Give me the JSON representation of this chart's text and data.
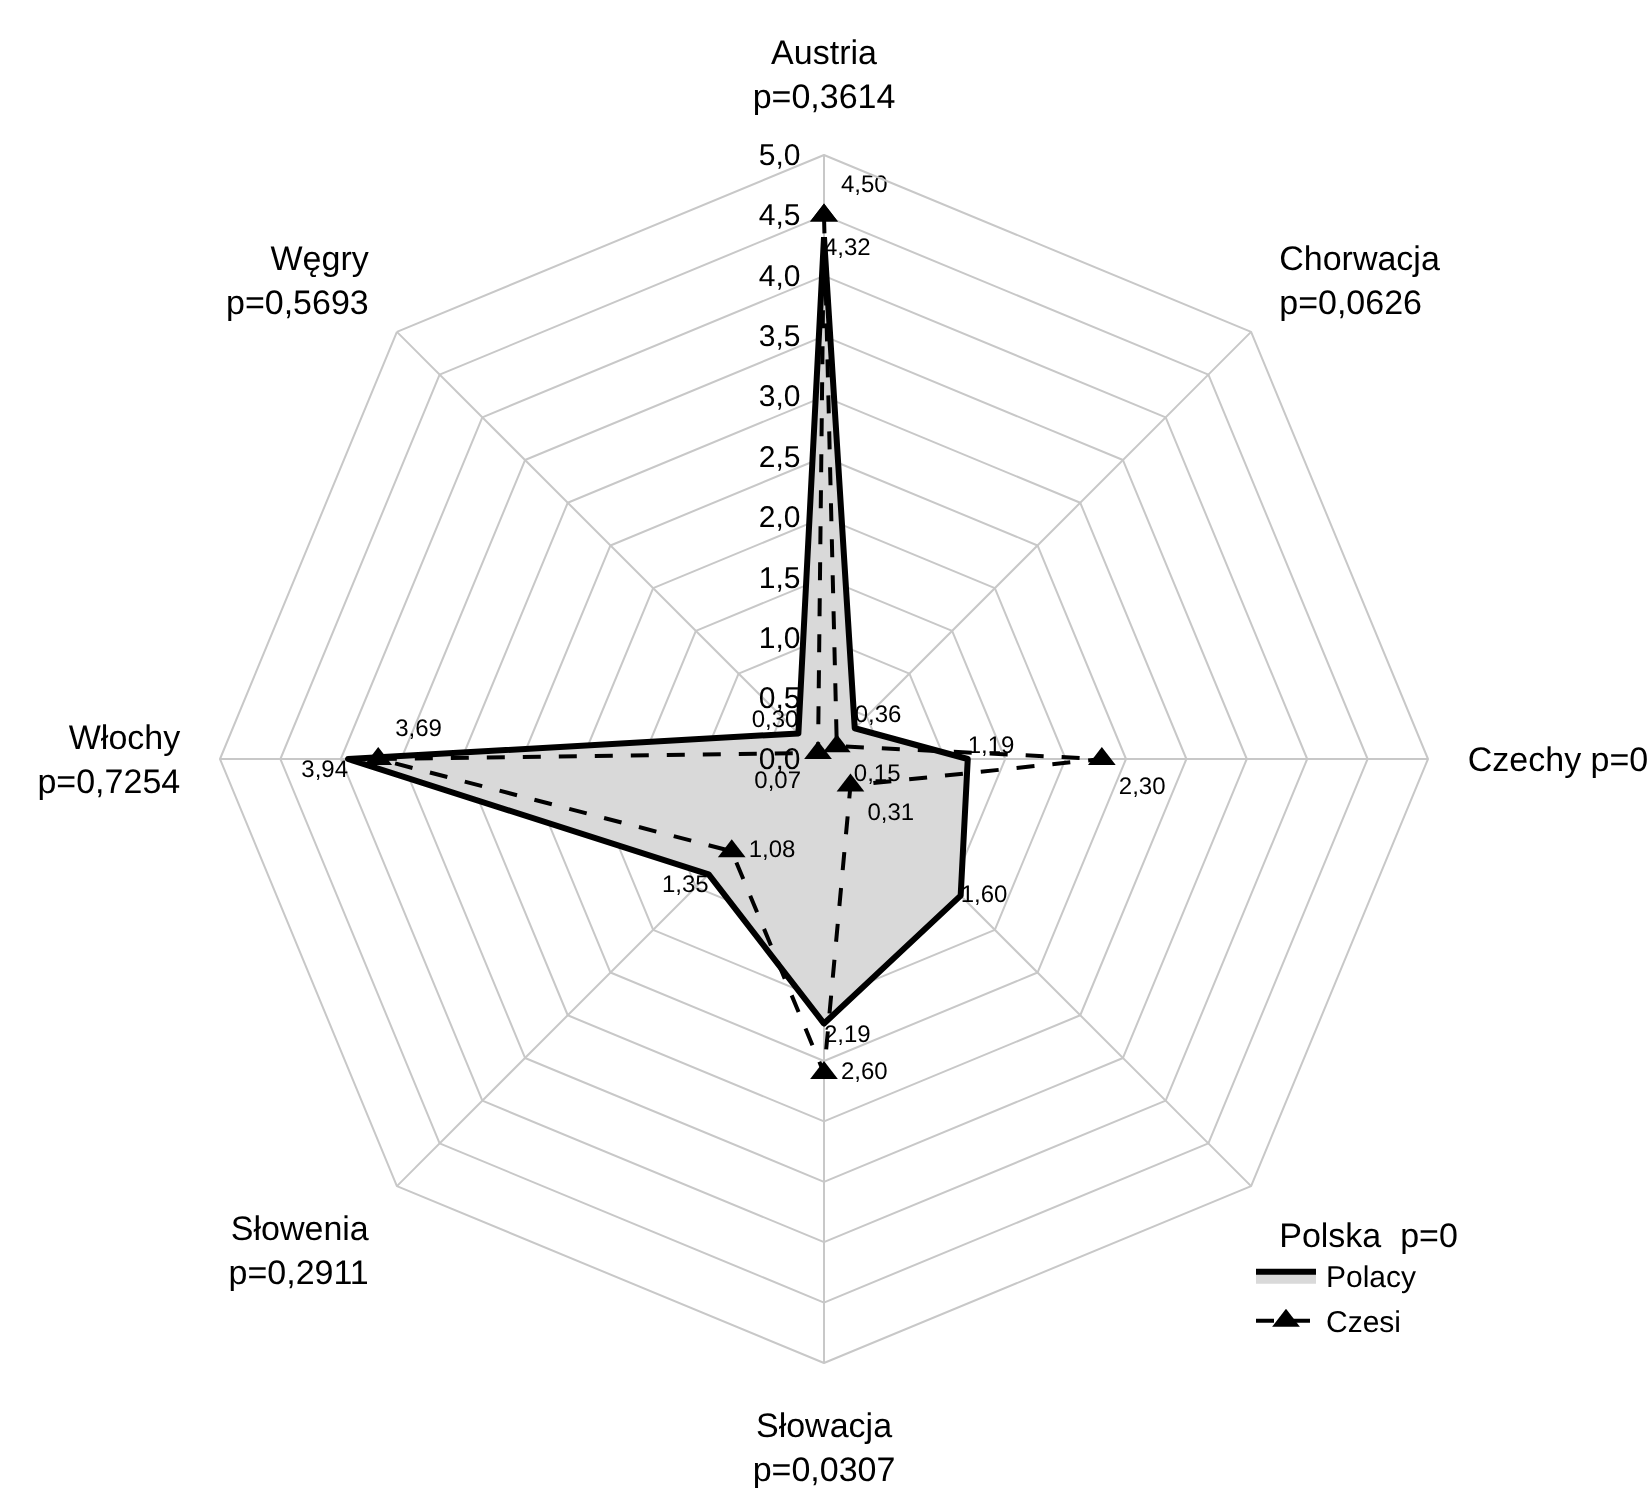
{
  "chart_data": {
    "type": "radar",
    "categories": [
      "Austria\np=0,3614",
      "Chorwacja\np=0,0626",
      "Czechy p=0",
      "Polska  p=0",
      "Słowacja\np=0,0307",
      "Słowenia\np=0,2911",
      "Włochy\np=0,7254",
      "Węgry\np=0,5693"
    ],
    "series": [
      {
        "name": "Polacy",
        "color": "#d9d9d9",
        "marker": "none",
        "line_style": "solid",
        "values": [
          4.32,
          0.36,
          1.19,
          1.6,
          2.19,
          1.35,
          3.94,
          0.3
        ],
        "value_labels": [
          "4,32",
          "0,36",
          "1,19",
          "1,60",
          "2,19",
          "1,35",
          "3,94",
          "0,30"
        ]
      },
      {
        "name": "Czesi",
        "color": "#000000",
        "marker": "triangle",
        "line_style": "dashed",
        "values": [
          4.5,
          0.15,
          2.3,
          0.31,
          2.6,
          1.08,
          3.69,
          0.07
        ],
        "value_labels": [
          "4,50",
          "0,15",
          "2,30",
          "0,31",
          "2,60",
          "1,08",
          "3,69",
          "0,07"
        ]
      }
    ],
    "ylim": [
      0,
      5
    ],
    "yticks": [
      {
        "value": 0,
        "label": "0,0"
      },
      {
        "value": 0.5,
        "label": "0,5"
      },
      {
        "value": 1,
        "label": "1,0"
      },
      {
        "value": 1.5,
        "label": "1,5"
      },
      {
        "value": 2,
        "label": "2,0"
      },
      {
        "value": 2.5,
        "label": "2,5"
      },
      {
        "value": 3,
        "label": "3,0"
      },
      {
        "value": 3.5,
        "label": "3,5"
      },
      {
        "value": 4,
        "label": "4,0"
      },
      {
        "value": 4.5,
        "label": "4,5"
      },
      {
        "value": 5,
        "label": "5,0"
      }
    ],
    "grid": true,
    "legend": "bottom right"
  }
}
